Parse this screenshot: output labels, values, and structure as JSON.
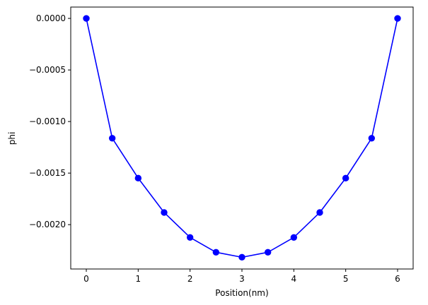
{
  "chart_data": {
    "type": "line",
    "title": "",
    "xlabel": "Position(nm)",
    "ylabel": "phi",
    "xlim": [
      -0.3,
      6.3
    ],
    "ylim": [
      -0.00243,
      0.00011
    ],
    "x_ticks": [
      0,
      1,
      2,
      3,
      4,
      5,
      6
    ],
    "x_tick_labels": [
      "0",
      "1",
      "2",
      "3",
      "4",
      "5",
      "6"
    ],
    "y_ticks": [
      0.0,
      -0.0005,
      -0.001,
      -0.0015,
      -0.002
    ],
    "y_tick_labels": [
      "0.0000",
      "−0.0005",
      "−0.0010",
      "−0.0015",
      "−0.0020"
    ],
    "grid": false,
    "legend": "none",
    "series": [
      {
        "color": "#0000ff",
        "marker": "circle",
        "x": [
          0,
          0.5,
          1,
          1.5,
          2,
          2.5,
          3,
          3.5,
          4,
          4.5,
          5,
          5.5,
          6
        ],
        "y": [
          0.0,
          -0.001162,
          -0.001549,
          -0.001882,
          -0.002124,
          -0.002268,
          -0.002316,
          -0.002268,
          -0.002124,
          -0.001882,
          -0.001549,
          -0.001162,
          0.0
        ]
      }
    ]
  }
}
